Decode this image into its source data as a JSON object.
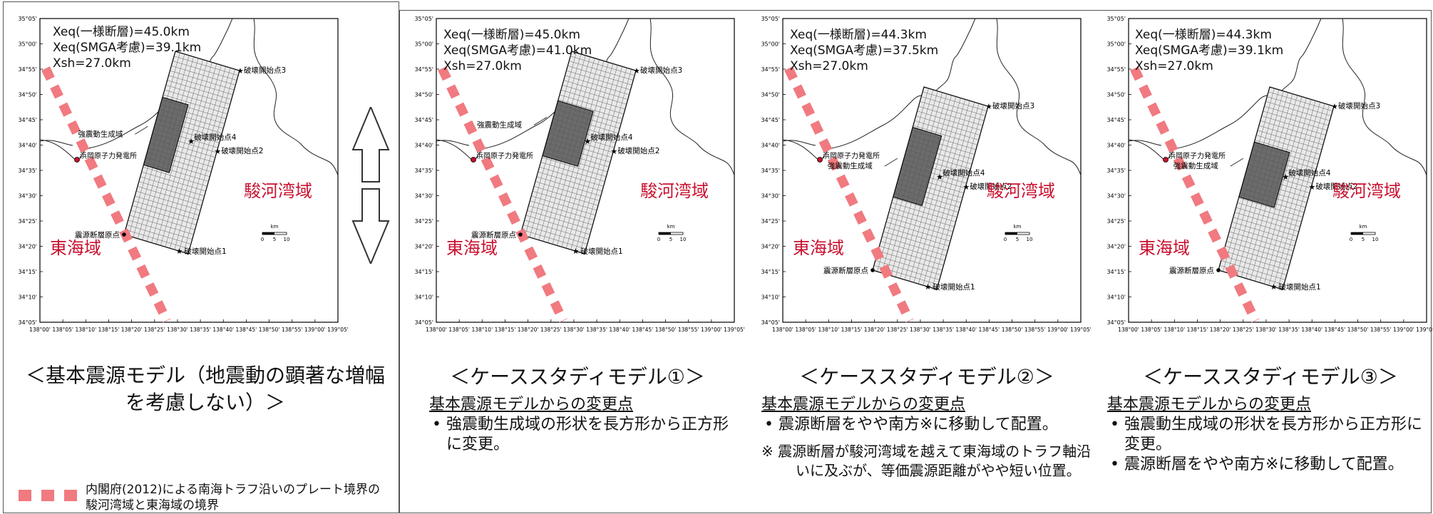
{
  "colors": {
    "boundary": "#f07a80",
    "region_label": "#c8102e",
    "frame": "#555555"
  },
  "lat_ticks": [
    "35°05'",
    "35°00'",
    "34°55'",
    "34°50'",
    "34°45'",
    "34°40'",
    "34°35'",
    "34°30'",
    "34°25'",
    "34°20'",
    "34°15'",
    "34°10'",
    "34°05'"
  ],
  "lon_ticks": [
    "138°00'",
    "138°05'",
    "138°10'",
    "138°15'",
    "138°20'",
    "138°25'",
    "138°30'",
    "138°35'",
    "138°40'",
    "138°45'",
    "138°50'",
    "138°55'",
    "139°00'",
    "139°05'"
  ],
  "labels": {
    "plant": "浜岡原子力発電所",
    "sgma": "強震動生成域",
    "origin": "震源断層原点",
    "r1": "破壊開始点1",
    "r2": "破壊開始点2",
    "r3": "破壊開始点3",
    "r4": "破壊開始点4",
    "suruga": "駿河湾域",
    "tokai": "東海域",
    "scale_unit": "km",
    "scale_0": "0",
    "scale_5": "5",
    "scale_10": "10"
  },
  "panels": [
    {
      "xeq1": "Xeq(一様断層)=45.0km",
      "xeq2": "Xeq(SMGA考慮)=39.1km",
      "xsh": "Xsh=27.0km",
      "caption": "＜基本震源モデル（地震動の顕著な増幅を考慮しない）＞"
    },
    {
      "xeq1": "Xeq(一様断層)=45.0km",
      "xeq2": "Xeq(SMGA考慮)=41.0km",
      "xsh": "Xsh=27.0km",
      "caption": "＜ケーススタディモデル①＞",
      "notes_title": "基本震源モデルからの変更点",
      "notes": [
        "• 強震動生成域の形状を長方形から正方形に変更。"
      ]
    },
    {
      "xeq1": "Xeq(一様断層)=44.3km",
      "xeq2": "Xeq(SMGA考慮)=37.5km",
      "xsh": "Xsh=27.0km",
      "caption": "＜ケーススタディモデル②＞",
      "notes_title": "基本震源モデルからの変更点",
      "notes": [
        "• 震源断層をやや南方※に移動して配置。"
      ],
      "footnote": "※ 震源断層が駿河湾域を越えて東海域のトラフ軸沿いに及ぶが、等価震源距離がやや短い位置。"
    },
    {
      "xeq1": "Xeq(一様断層)=44.3km",
      "xeq2": "Xeq(SMGA考慮)=39.1km",
      "xsh": "Xsh=27.0km",
      "caption": "＜ケーススタディモデル③＞",
      "notes_title": "基本震源モデルからの変更点",
      "notes": [
        "• 強震動生成域の形状を長方形から正方形に変更。",
        "• 震源断層をやや南方※に移動して配置。"
      ]
    }
  ],
  "legend_text": "内閣府(2012)による南海トラフ沿いのプレート境界の駿河湾域と東海域の境界"
}
